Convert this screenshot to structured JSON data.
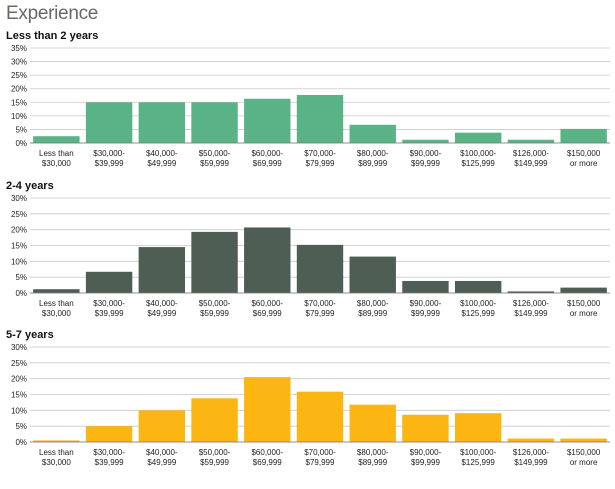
{
  "header": {
    "title": "Experience"
  },
  "chart_data": [
    {
      "type": "bar",
      "title": "Less than 2 years",
      "color": "#5ab386",
      "categories": [
        [
          "Less than",
          "$30,000"
        ],
        [
          "$30,000-",
          "$39,999"
        ],
        [
          "$40,000-",
          "$49,999"
        ],
        [
          "$50,000-",
          "$59,999"
        ],
        [
          "$60,000-",
          "$69,999"
        ],
        [
          "$70,000-",
          "$79,999"
        ],
        [
          "$80,000-",
          "$89,999"
        ],
        [
          "$90,000-",
          "$99,999"
        ],
        [
          "$100,000-",
          "$125,999"
        ],
        [
          "$126,000-",
          "$149,999"
        ],
        [
          "$150,000",
          "or more"
        ]
      ],
      "values": [
        2.5,
        15,
        15,
        15,
        16.3,
        17.7,
        6.7,
        1.2,
        3.8,
        1.2,
        5.2
      ],
      "ylim": [
        0,
        35
      ],
      "yticks": [
        "0%",
        "5%",
        "10%",
        "15%",
        "20%",
        "25%",
        "30%",
        "35%"
      ],
      "grid": true
    },
    {
      "type": "bar",
      "title": "2-4 years",
      "color": "#4f5e54",
      "categories": [
        [
          "Less than",
          "$30,000"
        ],
        [
          "$30,000-",
          "$39,999"
        ],
        [
          "$40,000-",
          "$49,999"
        ],
        [
          "$50,000-",
          "$59,999"
        ],
        [
          "$60,000-",
          "$69,999"
        ],
        [
          "$70,000-",
          "$79,999"
        ],
        [
          "$80,000-",
          "$89,999"
        ],
        [
          "$90,000-",
          "$99,999"
        ],
        [
          "$100,000-",
          "$125,999"
        ],
        [
          "$126,000-",
          "$149,999"
        ],
        [
          "$150,000",
          "or more"
        ]
      ],
      "values": [
        1.2,
        6.7,
        14.5,
        19.3,
        20.7,
        15.2,
        11.5,
        3.8,
        3.8,
        0.5,
        1.7
      ],
      "ylim": [
        0,
        30
      ],
      "yticks": [
        "0%",
        "5%",
        "10%",
        "15%",
        "20%",
        "25%",
        "30%"
      ],
      "grid": true
    },
    {
      "type": "bar",
      "title": "5-7 years",
      "color": "#fbb613",
      "categories": [
        [
          "Less than",
          "$30,000"
        ],
        [
          "$30,000-",
          "$39,999"
        ],
        [
          "$40,000-",
          "$49,999"
        ],
        [
          "$50,000-",
          "$59,999"
        ],
        [
          "$60,000-",
          "$69,999"
        ],
        [
          "$70,000-",
          "$79,999"
        ],
        [
          "$80,000-",
          "$89,999"
        ],
        [
          "$90,000-",
          "$99,999"
        ],
        [
          "$100,000-",
          "$125,999"
        ],
        [
          "$126,000-",
          "$149,999"
        ],
        [
          "$150,000",
          "or more"
        ]
      ],
      "values": [
        0.5,
        5.0,
        10.0,
        13.8,
        20.5,
        15.9,
        11.8,
        8.6,
        9.1,
        1.1,
        1.1
      ],
      "ylim": [
        0,
        30
      ],
      "yticks": [
        "0%",
        "5%",
        "10%",
        "15%",
        "20%",
        "25%",
        "30%"
      ],
      "grid": true
    }
  ]
}
